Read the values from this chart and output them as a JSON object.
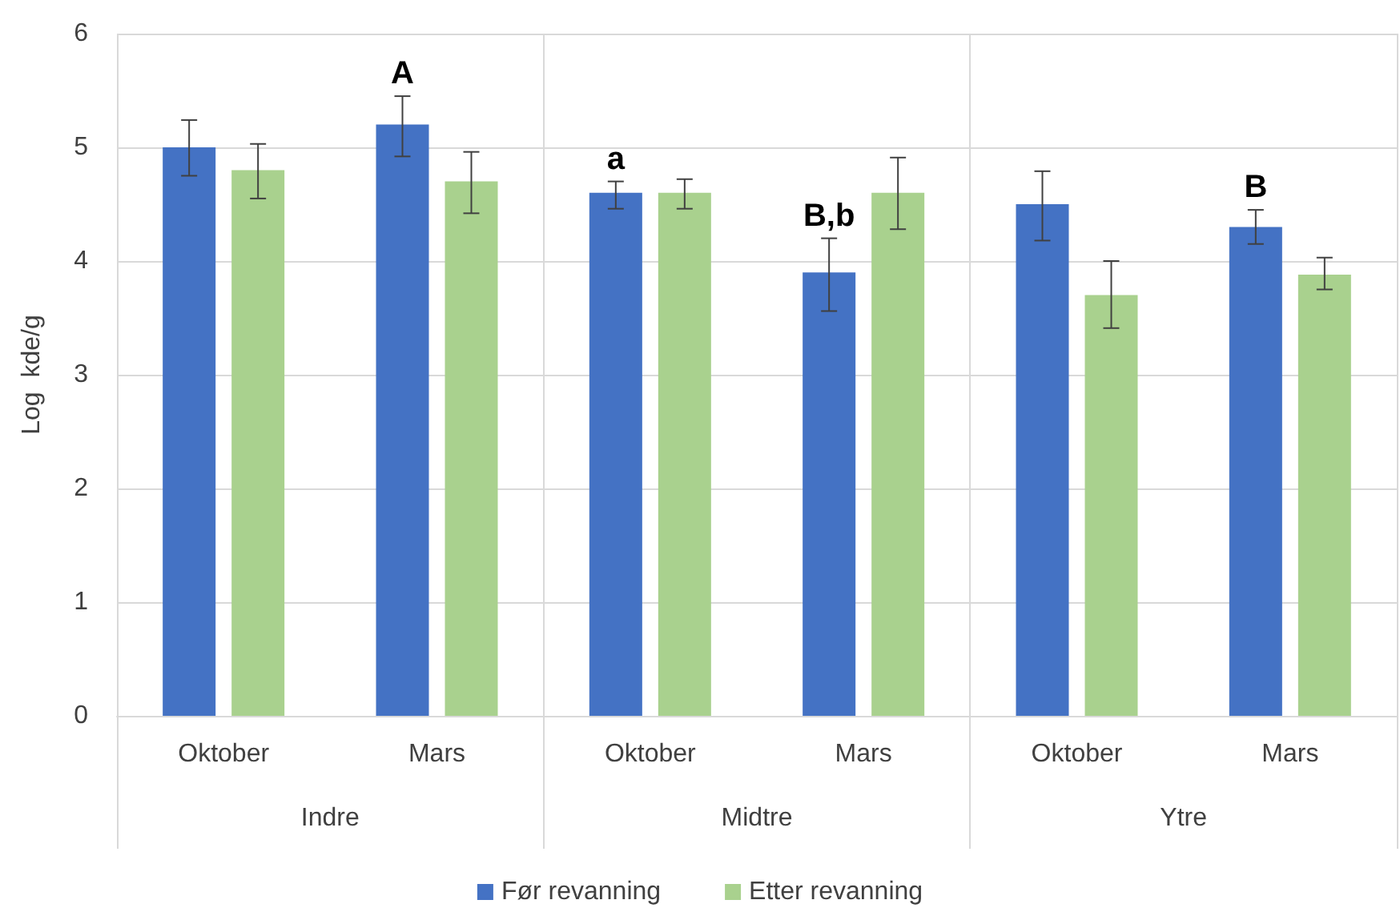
{
  "chart_data": {
    "type": "bar",
    "ylabel": "Log  kde/g",
    "categories": [
      "Oktober",
      "Mars",
      "Oktober",
      "Mars",
      "Oktober",
      "Mars"
    ],
    "annotations": [
      "Indre",
      "Midtre",
      "Ytre"
    ],
    "series": [
      {
        "name": "Før revanning",
        "color": "#4472c4",
        "values": [
          5.0,
          5.2,
          4.6,
          3.9,
          4.5,
          4.3
        ],
        "errors": [
          [
            4.75,
            5.24
          ],
          [
            4.92,
            5.45
          ],
          [
            4.46,
            4.7
          ],
          [
            3.56,
            4.2
          ],
          [
            4.18,
            4.79
          ],
          [
            4.15,
            4.45
          ]
        ],
        "value_labels": [
          null,
          "A",
          "a",
          "B,b",
          null,
          "B"
        ]
      },
      {
        "name": "Etter revanning",
        "color": "#a9d18e",
        "values": [
          4.8,
          4.7,
          4.6,
          4.6,
          3.7,
          3.88
        ],
        "errors": [
          [
            4.55,
            5.03
          ],
          [
            4.42,
            4.96
          ],
          [
            4.46,
            4.72
          ],
          [
            4.28,
            4.91
          ],
          [
            3.41,
            4.0
          ],
          [
            3.75,
            4.03
          ]
        ]
      }
    ],
    "ylim": [
      0,
      6
    ],
    "yticks": [
      0,
      1,
      2,
      3,
      4,
      5,
      6
    ],
    "grid": true,
    "legend": "bottom"
  }
}
